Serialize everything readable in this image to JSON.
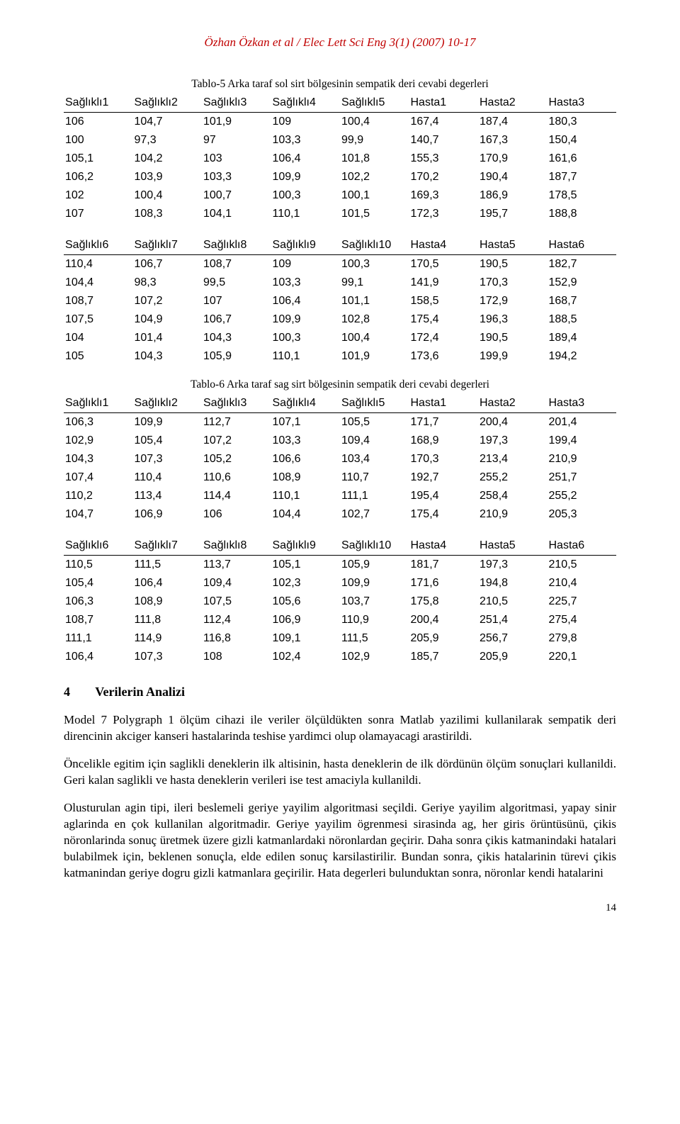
{
  "header": {
    "author_line": "Özhan Özkan et al / Elec Lett Sci Eng 3(1) (2007) 10-17"
  },
  "captions": {
    "table5": "Tablo-5 Arka taraf sol sirt bölgesinin sempatik deri cevabi degerleri",
    "table6": "Tablo-6 Arka taraf sag sirt bölgesinin sempatik deri cevabi degerleri"
  },
  "tables": {
    "t5a": {
      "columns": [
        "Sağlıklı1",
        "Sağlıklı2",
        "Sağlıklı3",
        "Sağlıklı4",
        "Sağlıklı5",
        "Hasta1",
        "Hasta2",
        "Hasta3"
      ],
      "rows": [
        [
          "106",
          "104,7",
          "101,9",
          "109",
          "100,4",
          "167,4",
          "187,4",
          "180,3"
        ],
        [
          "100",
          "97,3",
          "97",
          "103,3",
          "99,9",
          "140,7",
          "167,3",
          "150,4"
        ],
        [
          "105,1",
          "104,2",
          "103",
          "106,4",
          "101,8",
          "155,3",
          "170,9",
          "161,6"
        ],
        [
          "106,2",
          "103,9",
          "103,3",
          "109,9",
          "102,2",
          "170,2",
          "190,4",
          "187,7"
        ],
        [
          "102",
          "100,4",
          "100,7",
          "100,3",
          "100,1",
          "169,3",
          "186,9",
          "178,5"
        ],
        [
          "107",
          "108,3",
          "104,1",
          "110,1",
          "101,5",
          "172,3",
          "195,7",
          "188,8"
        ]
      ]
    },
    "t5b": {
      "columns": [
        "Sağlıklı6",
        "Sağlıklı7",
        "Sağlıklı8",
        "Sağlıklı9",
        "Sağlıklı10",
        "Hasta4",
        "Hasta5",
        "Hasta6"
      ],
      "rows": [
        [
          "110,4",
          "106,7",
          "108,7",
          "109",
          "100,3",
          "170,5",
          "190,5",
          "182,7"
        ],
        [
          "104,4",
          "98,3",
          "99,5",
          "103,3",
          "99,1",
          "141,9",
          "170,3",
          "152,9"
        ],
        [
          "108,7",
          "107,2",
          "107",
          "106,4",
          "101,1",
          "158,5",
          "172,9",
          "168,7"
        ],
        [
          "107,5",
          "104,9",
          "106,7",
          "109,9",
          "102,8",
          "175,4",
          "196,3",
          "188,5"
        ],
        [
          "104",
          "101,4",
          "104,3",
          "100,3",
          "100,4",
          "172,4",
          "190,5",
          "189,4"
        ],
        [
          "105",
          "104,3",
          "105,9",
          "110,1",
          "101,9",
          "173,6",
          "199,9",
          "194,2"
        ]
      ]
    },
    "t6a": {
      "columns": [
        "Sağlıklı1",
        "Sağlıklı2",
        "Sağlıklı3",
        "Sağlıklı4",
        "Sağlıklı5",
        "Hasta1",
        "Hasta2",
        "Hasta3"
      ],
      "rows": [
        [
          "106,3",
          "109,9",
          "112,7",
          "107,1",
          "105,5",
          "171,7",
          "200,4",
          "201,4"
        ],
        [
          "102,9",
          "105,4",
          "107,2",
          "103,3",
          "109,4",
          "168,9",
          "197,3",
          "199,4"
        ],
        [
          "104,3",
          "107,3",
          "105,2",
          "106,6",
          "103,4",
          "170,3",
          "213,4",
          "210,9"
        ],
        [
          "107,4",
          "110,4",
          "110,6",
          "108,9",
          "110,7",
          "192,7",
          "255,2",
          "251,7"
        ],
        [
          "110,2",
          "113,4",
          "114,4",
          "110,1",
          "111,1",
          "195,4",
          "258,4",
          "255,2"
        ],
        [
          "104,7",
          "106,9",
          "106",
          "104,4",
          "102,7",
          "175,4",
          "210,9",
          "205,3"
        ]
      ]
    },
    "t6b": {
      "columns": [
        "Sağlıklı6",
        "Sağlıklı7",
        "Sağlıklı8",
        "Sağlıklı9",
        "Sağlıklı10",
        "Hasta4",
        "Hasta5",
        "Hasta6"
      ],
      "rows": [
        [
          "110,5",
          "111,5",
          "113,7",
          "105,1",
          "105,9",
          "181,7",
          "197,3",
          "210,5"
        ],
        [
          "105,4",
          "106,4",
          "109,4",
          "102,3",
          "109,9",
          "171,6",
          "194,8",
          "210,4"
        ],
        [
          "106,3",
          "108,9",
          "107,5",
          "105,6",
          "103,7",
          "175,8",
          "210,5",
          "225,7"
        ],
        [
          "108,7",
          "111,8",
          "112,4",
          "106,9",
          "110,9",
          "200,4",
          "251,4",
          "275,4"
        ],
        [
          "111,1",
          "114,9",
          "116,8",
          "109,1",
          "111,5",
          "205,9",
          "256,7",
          "279,8"
        ],
        [
          "106,4",
          "107,3",
          "108",
          "102,4",
          "102,9",
          "185,7",
          "205,9",
          "220,1"
        ]
      ]
    }
  },
  "section": {
    "number": "4",
    "title": "Verilerin Analizi"
  },
  "paragraphs": {
    "p1": "Model 7 Polygraph 1 ölçüm cihazi ile veriler ölçüldükten sonra Matlab yazilimi kullanilarak sempatik deri direncinin akciger kanseri hastalarinda teshise yardimci olup olamayacagi arastirildi.",
    "p2": "Öncelikle egitim için saglikli deneklerin ilk altisinin, hasta deneklerin de ilk dördünün ölçüm sonuçlari kullanildi. Geri kalan saglikli ve hasta deneklerin verileri ise test amaciyla kullanildi.",
    "p3": "Olusturulan agin tipi, ileri beslemeli geriye yayilim algoritmasi seçildi. Geriye yayilim algoritmasi, yapay sinir aglarinda en çok kullanilan algoritmadir. Geriye yayilim ögrenmesi sirasinda ag, her giris örüntüsünü, çikis nöronlarinda sonuç üretmek üzere gizli katmanlardaki nöronlardan geçirir. Daha sonra çikis katmanindaki hatalari bulabilmek için, beklenen sonuçla, elde edilen sonuç karsilastirilir. Bundan sonra, çikis hatalarinin türevi çikis katmanindan geriye dogru gizli katmanlara geçirilir. Hata degerleri bulunduktan sonra, nöronlar kendi hatalarini"
  },
  "page_number": "14"
}
